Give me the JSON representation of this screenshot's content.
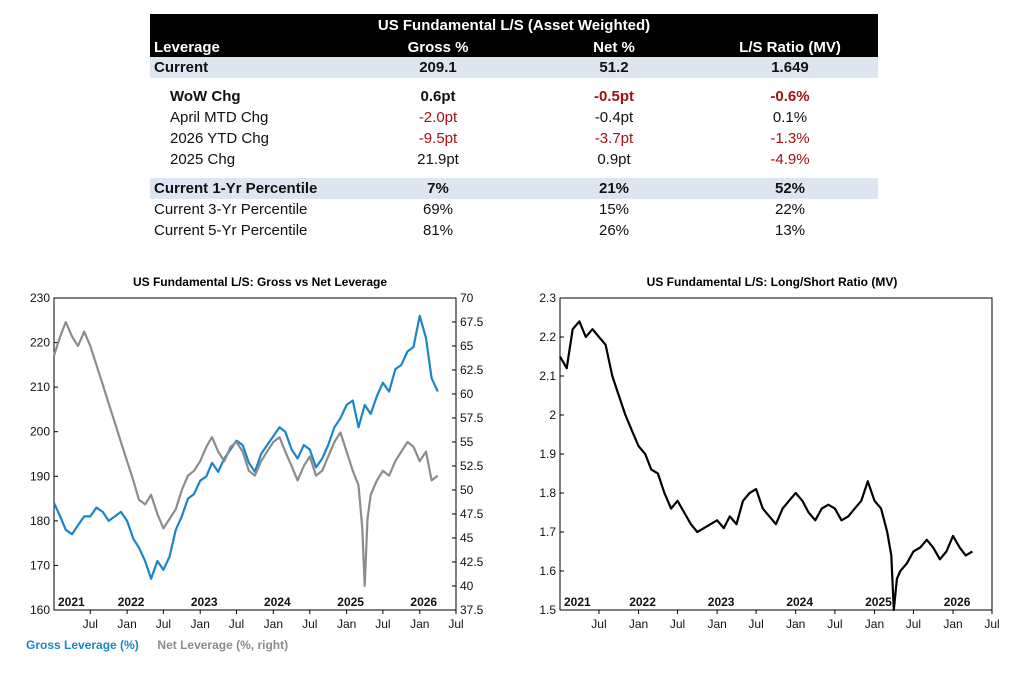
{
  "table": {
    "title": "US Fundamental L/S (Asset Weighted)",
    "header": [
      "Leverage",
      "Gross %",
      "Net %",
      "L/S Ratio (MV)"
    ],
    "rows": [
      {
        "label": "Current",
        "values": [
          "209.1",
          "51.2",
          "1.649"
        ],
        "neg": [
          false,
          false,
          false
        ],
        "style": "hl"
      },
      {
        "label": "WoW Chg",
        "values": [
          "0.6pt",
          "-0.5pt",
          "-0.6%"
        ],
        "neg": [
          false,
          true,
          true
        ],
        "style": "bold indent"
      },
      {
        "label": "April MTD Chg",
        "values": [
          "-2.0pt",
          "-0.4pt",
          "0.1%"
        ],
        "neg": [
          true,
          false,
          false
        ],
        "style": "indent"
      },
      {
        "label": "2026 YTD Chg",
        "values": [
          "-9.5pt",
          "-3.7pt",
          "-1.3%"
        ],
        "neg": [
          true,
          true,
          true
        ],
        "style": "indent"
      },
      {
        "label": "2025 Chg",
        "values": [
          "21.9pt",
          "0.9pt",
          "-4.9%"
        ],
        "neg": [
          false,
          false,
          true
        ],
        "style": "indent"
      },
      {
        "label": "Current 1-Yr Percentile",
        "values": [
          "7%",
          "21%",
          "52%"
        ],
        "neg": [
          false,
          false,
          false
        ],
        "style": "hl"
      },
      {
        "label": "Current 3-Yr Percentile",
        "values": [
          "69%",
          "15%",
          "22%"
        ],
        "neg": [
          false,
          false,
          false
        ],
        "style": ""
      },
      {
        "label": "Current 5-Yr Percentile",
        "values": [
          "81%",
          "26%",
          "13%"
        ],
        "neg": [
          false,
          false,
          false
        ],
        "style": ""
      }
    ],
    "colors": {
      "header_bg": "#000000",
      "highlight_bg": "#dce6f1",
      "negative": "#a50f15"
    }
  },
  "chart_data": [
    {
      "type": "line",
      "title": "US Fundamental L/S: Gross vs Net Leverage",
      "x_ticks": [
        "Jul",
        "Jan",
        "Jul",
        "Jan",
        "Jul",
        "Jan",
        "Jul",
        "Jan",
        "Jul",
        "Jan",
        "Jul"
      ],
      "x_tick_dates": [
        "2021-07-01",
        "2022-01-01",
        "2022-07-01",
        "2023-01-01",
        "2023-07-01",
        "2024-01-01",
        "2024-07-01",
        "2025-01-01",
        "2025-07-01",
        "2026-01-01",
        "2026-07-01"
      ],
      "year_labels": [
        "2021",
        "2022",
        "2023",
        "2024",
        "2025",
        "2026"
      ],
      "year_label_dates": [
        "2021-01-01",
        "2022-01-01",
        "2023-01-01",
        "2024-01-01",
        "2025-01-01",
        "2026-01-01"
      ],
      "xlim": [
        "2021-01-01",
        "2026-07-01"
      ],
      "y_left": {
        "ylim": [
          160,
          230
        ],
        "ticks": [
          "160",
          "170",
          "180",
          "190",
          "200",
          "210",
          "220",
          "230"
        ]
      },
      "y_right": {
        "ylim": [
          37.5,
          70
        ],
        "ticks": [
          "37.5",
          "40",
          "42.5",
          "45",
          "47.5",
          "50",
          "52.5",
          "55",
          "57.5",
          "60",
          "62.5",
          "65",
          "67.5",
          "70"
        ]
      },
      "series": [
        {
          "name": "Gross Leverage (%)",
          "axis": "left",
          "color": "#1a86c8",
          "x": [
            "2021-01-01",
            "2021-02-01",
            "2021-03-01",
            "2021-04-01",
            "2021-05-01",
            "2021-06-01",
            "2021-07-01",
            "2021-08-01",
            "2021-09-01",
            "2021-10-01",
            "2021-11-01",
            "2021-12-01",
            "2022-01-01",
            "2022-02-01",
            "2022-03-01",
            "2022-04-01",
            "2022-05-01",
            "2022-06-01",
            "2022-07-01",
            "2022-08-01",
            "2022-09-01",
            "2022-10-01",
            "2022-11-01",
            "2022-12-01",
            "2023-01-01",
            "2023-02-01",
            "2023-03-01",
            "2023-04-01",
            "2023-05-01",
            "2023-06-01",
            "2023-07-01",
            "2023-08-01",
            "2023-09-01",
            "2023-10-01",
            "2023-11-01",
            "2023-12-01",
            "2024-01-01",
            "2024-02-01",
            "2024-03-01",
            "2024-04-01",
            "2024-05-01",
            "2024-06-01",
            "2024-07-01",
            "2024-08-01",
            "2024-09-01",
            "2024-10-01",
            "2024-11-01",
            "2024-12-01",
            "2025-01-01",
            "2025-02-01",
            "2025-03-01",
            "2025-04-01",
            "2025-05-01",
            "2025-06-01",
            "2025-07-01",
            "2025-08-01",
            "2025-09-01",
            "2025-10-01",
            "2025-11-01",
            "2025-12-01",
            "2026-01-01",
            "2026-02-01",
            "2026-03-01",
            "2026-04-01"
          ],
          "values": [
            184,
            181,
            178,
            177,
            179,
            181,
            181,
            183,
            182,
            180,
            181,
            182,
            180,
            176,
            174,
            171,
            167,
            171,
            169,
            172,
            178,
            181,
            185,
            186,
            189,
            190,
            193,
            191,
            194,
            196,
            198,
            197,
            193,
            191,
            195,
            197,
            199,
            201,
            200,
            196,
            194,
            197,
            196,
            192,
            194,
            197,
            201,
            203,
            206,
            207,
            201,
            206,
            204,
            208,
            211,
            209,
            214,
            215,
            218,
            219,
            226,
            221,
            212,
            209
          ]
        },
        {
          "name": "Net Leverage (%, right)",
          "axis": "right",
          "color": "#8c8c8c",
          "x": [
            "2021-01-01",
            "2021-02-01",
            "2021-03-01",
            "2021-04-01",
            "2021-05-01",
            "2021-06-01",
            "2021-07-01",
            "2021-08-01",
            "2021-09-01",
            "2021-10-01",
            "2021-11-01",
            "2021-12-01",
            "2022-01-01",
            "2022-02-01",
            "2022-03-01",
            "2022-04-01",
            "2022-05-01",
            "2022-06-01",
            "2022-07-01",
            "2022-08-01",
            "2022-09-01",
            "2022-10-01",
            "2022-11-01",
            "2022-12-01",
            "2023-01-01",
            "2023-02-01",
            "2023-03-01",
            "2023-04-01",
            "2023-05-01",
            "2023-06-01",
            "2023-07-01",
            "2023-08-01",
            "2023-09-01",
            "2023-10-01",
            "2023-11-01",
            "2023-12-01",
            "2024-01-01",
            "2024-02-01",
            "2024-03-01",
            "2024-04-01",
            "2024-05-01",
            "2024-06-01",
            "2024-07-01",
            "2024-08-01",
            "2024-09-01",
            "2024-10-01",
            "2024-11-01",
            "2024-12-01",
            "2025-01-01",
            "2025-02-01",
            "2025-03-01",
            "2025-03-20",
            "2025-04-01",
            "2025-04-15",
            "2025-05-01",
            "2025-06-01",
            "2025-07-01",
            "2025-08-01",
            "2025-09-01",
            "2025-10-01",
            "2025-11-01",
            "2025-12-01",
            "2026-01-01",
            "2026-02-01",
            "2026-03-01",
            "2026-04-01"
          ],
          "values": [
            64,
            66,
            67.5,
            66,
            65,
            66.5,
            65,
            63,
            61,
            59,
            57,
            55,
            53,
            51,
            49,
            48.5,
            49.5,
            47.5,
            46,
            47,
            48,
            50,
            51.5,
            52,
            53,
            54.5,
            55.5,
            54,
            53,
            54.5,
            55,
            54,
            52,
            51.5,
            53,
            54,
            55,
            55.5,
            54,
            52.5,
            51,
            52.5,
            53.5,
            51.5,
            52,
            53.5,
            55,
            56,
            54,
            52,
            50.5,
            46,
            40,
            47,
            49.5,
            51,
            52,
            51.5,
            53,
            54,
            55,
            54.5,
            53,
            54,
            51,
            51.5
          ]
        }
      ]
    },
    {
      "type": "line",
      "title": "US Fundamental L/S: Long/Short Ratio (MV)",
      "x_ticks": [
        "Jul",
        "Jan",
        "Jul",
        "Jan",
        "Jul",
        "Jan",
        "Jul",
        "Jan",
        "Jul",
        "Jan",
        "Jul"
      ],
      "x_tick_dates": [
        "2021-07-01",
        "2022-01-01",
        "2022-07-01",
        "2023-01-01",
        "2023-07-01",
        "2024-01-01",
        "2024-07-01",
        "2025-01-01",
        "2025-07-01",
        "2026-01-01",
        "2026-07-01"
      ],
      "year_labels": [
        "2021",
        "2022",
        "2023",
        "2024",
        "2025",
        "2026"
      ],
      "year_label_dates": [
        "2021-01-01",
        "2022-01-01",
        "2023-01-01",
        "2024-01-01",
        "2025-01-01",
        "2026-01-01"
      ],
      "xlim": [
        "2021-01-01",
        "2026-07-01"
      ],
      "y_left": {
        "ylim": [
          1.5,
          2.3
        ],
        "ticks": [
          "1.5",
          "1.6",
          "1.7",
          "1.8",
          "1.9",
          "2",
          "2.1",
          "2.2",
          "2.3"
        ]
      },
      "series": [
        {
          "axis": "left",
          "color": "#000000",
          "x": [
            "2021-01-01",
            "2021-02-01",
            "2021-03-01",
            "2021-04-01",
            "2021-05-01",
            "2021-06-01",
            "2021-07-01",
            "2021-08-01",
            "2021-09-01",
            "2021-10-01",
            "2021-11-01",
            "2021-12-01",
            "2022-01-01",
            "2022-02-01",
            "2022-03-01",
            "2022-04-01",
            "2022-05-01",
            "2022-06-01",
            "2022-07-01",
            "2022-08-01",
            "2022-09-01",
            "2022-10-01",
            "2022-11-01",
            "2022-12-01",
            "2023-01-01",
            "2023-02-01",
            "2023-03-01",
            "2023-04-01",
            "2023-05-01",
            "2023-06-01",
            "2023-07-01",
            "2023-08-01",
            "2023-09-01",
            "2023-10-01",
            "2023-11-01",
            "2023-12-01",
            "2024-01-01",
            "2024-02-01",
            "2024-03-01",
            "2024-04-01",
            "2024-05-01",
            "2024-06-01",
            "2024-07-01",
            "2024-08-01",
            "2024-09-01",
            "2024-10-01",
            "2024-11-01",
            "2024-12-01",
            "2025-01-01",
            "2025-02-01",
            "2025-03-01",
            "2025-03-20",
            "2025-04-01",
            "2025-04-15",
            "2025-05-01",
            "2025-06-01",
            "2025-07-01",
            "2025-08-01",
            "2025-09-01",
            "2025-10-01",
            "2025-11-01",
            "2025-12-01",
            "2026-01-01",
            "2026-02-01",
            "2026-03-01",
            "2026-04-01"
          ],
          "values": [
            2.15,
            2.12,
            2.22,
            2.24,
            2.2,
            2.22,
            2.2,
            2.18,
            2.1,
            2.05,
            2.0,
            1.96,
            1.92,
            1.9,
            1.86,
            1.85,
            1.8,
            1.76,
            1.78,
            1.75,
            1.72,
            1.7,
            1.71,
            1.72,
            1.73,
            1.71,
            1.74,
            1.72,
            1.78,
            1.8,
            1.81,
            1.76,
            1.74,
            1.72,
            1.76,
            1.78,
            1.8,
            1.78,
            1.75,
            1.73,
            1.76,
            1.77,
            1.76,
            1.73,
            1.74,
            1.76,
            1.78,
            1.83,
            1.78,
            1.76,
            1.7,
            1.64,
            1.5,
            1.58,
            1.6,
            1.62,
            1.65,
            1.66,
            1.68,
            1.66,
            1.63,
            1.65,
            1.69,
            1.66,
            1.64,
            1.65
          ]
        }
      ]
    }
  ]
}
